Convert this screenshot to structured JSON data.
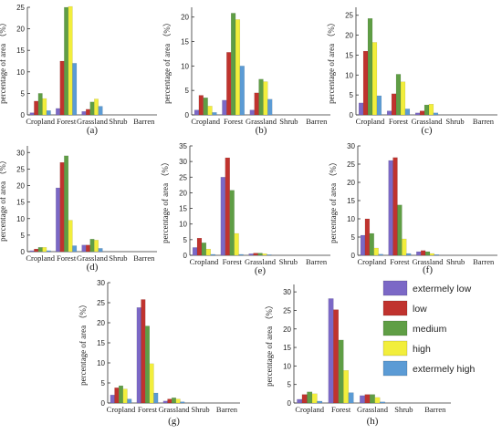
{
  "chart_data": [
    {
      "panel_label": "(a)",
      "type": "bar",
      "ylabel": "percentage of area （%）",
      "categories": [
        "Cropland",
        "Forest",
        "Grassland",
        "Shrub",
        "Barren"
      ],
      "ylim": [
        0,
        25
      ],
      "yticks": [
        0,
        5,
        10,
        15,
        20,
        25
      ],
      "series": [
        {
          "name": "extermely low",
          "values": [
            0.5,
            1.5,
            0.8,
            0,
            0
          ]
        },
        {
          "name": "low",
          "values": [
            3.2,
            12.5,
            1.3,
            0,
            0
          ]
        },
        {
          "name": "medium",
          "values": [
            5.0,
            25.0,
            3.0,
            0,
            0
          ]
        },
        {
          "name": "high",
          "values": [
            3.8,
            25.2,
            3.7,
            0,
            0
          ]
        },
        {
          "name": "extermely high",
          "values": [
            1.0,
            12.0,
            2.0,
            0,
            0
          ]
        }
      ]
    },
    {
      "panel_label": "(b)",
      "type": "bar",
      "ylabel": "percentage of area （%）",
      "categories": [
        "Cropland",
        "Forest",
        "Grassland",
        "Shrub",
        "Barren"
      ],
      "ylim": [
        0,
        22
      ],
      "yticks": [
        0,
        5,
        10,
        15,
        20
      ],
      "series": [
        {
          "name": "extermely low",
          "values": [
            1.0,
            3.0,
            1.0,
            0,
            0
          ]
        },
        {
          "name": "low",
          "values": [
            4.0,
            12.8,
            4.5,
            0,
            0
          ]
        },
        {
          "name": "medium",
          "values": [
            3.5,
            20.8,
            7.3,
            0,
            0
          ]
        },
        {
          "name": "high",
          "values": [
            1.8,
            19.5,
            6.8,
            0,
            0
          ]
        },
        {
          "name": "extermely high",
          "values": [
            0.5,
            10.0,
            3.2,
            0,
            0
          ]
        }
      ]
    },
    {
      "panel_label": "(c)",
      "type": "bar",
      "ylabel": "percentage of area （%）",
      "categories": [
        "Cropland",
        "Forest",
        "Grassland",
        "Shrub",
        "Barren"
      ],
      "ylim": [
        0,
        27
      ],
      "yticks": [
        0,
        5,
        10,
        15,
        20,
        25
      ],
      "series": [
        {
          "name": "extermely low",
          "values": [
            3.0,
            1.0,
            0.5,
            0,
            0
          ]
        },
        {
          "name": "low",
          "values": [
            16.0,
            5.3,
            1.0,
            0,
            0
          ]
        },
        {
          "name": "medium",
          "values": [
            24.2,
            10.2,
            2.5,
            0,
            0
          ]
        },
        {
          "name": "high",
          "values": [
            18.2,
            8.3,
            2.7,
            0,
            0
          ]
        },
        {
          "name": "extermely high",
          "values": [
            4.8,
            1.5,
            0.5,
            0,
            0
          ]
        }
      ]
    },
    {
      "panel_label": "(d)",
      "type": "bar",
      "ylabel": "percentage of area （%）",
      "categories": [
        "Cropland",
        "Forest",
        "Grassland",
        "Shrub",
        "Barren"
      ],
      "ylim": [
        0,
        32
      ],
      "yticks": [
        0,
        5,
        10,
        15,
        20,
        25,
        30
      ],
      "series": [
        {
          "name": "extermely low",
          "values": [
            0.3,
            19.3,
            2.0,
            0,
            0
          ]
        },
        {
          "name": "low",
          "values": [
            0.8,
            27.0,
            2.0,
            0,
            0
          ]
        },
        {
          "name": "medium",
          "values": [
            1.3,
            29.0,
            3.8,
            0,
            0
          ]
        },
        {
          "name": "high",
          "values": [
            1.3,
            9.5,
            3.5,
            0,
            0
          ]
        },
        {
          "name": "extermely high",
          "values": [
            0.3,
            1.8,
            1.0,
            0,
            0
          ]
        }
      ]
    },
    {
      "panel_label": "(e)",
      "type": "bar",
      "ylabel": "percentage of area （%）",
      "categories": [
        "Cropland",
        "Forest",
        "Grassland",
        "Shrub",
        "Barren"
      ],
      "ylim": [
        0,
        35
      ],
      "yticks": [
        0,
        5,
        10,
        15,
        20,
        25,
        30,
        35
      ],
      "series": [
        {
          "name": "extermely low",
          "values": [
            2.5,
            25.0,
            0.5,
            0,
            0
          ]
        },
        {
          "name": "low",
          "values": [
            5.5,
            31.2,
            0.7,
            0,
            0
          ]
        },
        {
          "name": "medium",
          "values": [
            4.0,
            20.8,
            0.7,
            0,
            0
          ]
        },
        {
          "name": "high",
          "values": [
            2.0,
            7.0,
            0.5,
            0,
            0
          ]
        },
        {
          "name": "extermely high",
          "values": [
            0.3,
            0.3,
            0.2,
            0,
            0
          ]
        }
      ]
    },
    {
      "panel_label": "(f)",
      "type": "bar",
      "ylabel": "percentage of area （%）",
      "categories": [
        "Cropland",
        "Forest",
        "Grassland",
        "Shrub",
        "Barren"
      ],
      "ylim": [
        0,
        30
      ],
      "yticks": [
        0,
        5,
        10,
        15,
        20,
        25,
        30
      ],
      "series": [
        {
          "name": "extermely low",
          "values": [
            5.5,
            26.0,
            1.0,
            0,
            0
          ]
        },
        {
          "name": "low",
          "values": [
            10.0,
            26.8,
            1.3,
            0,
            0
          ]
        },
        {
          "name": "medium",
          "values": [
            6.0,
            13.8,
            1.0,
            0,
            0
          ]
        },
        {
          "name": "high",
          "values": [
            2.0,
            4.5,
            0.5,
            0,
            0
          ]
        },
        {
          "name": "extermely high",
          "values": [
            0.3,
            0.5,
            0.2,
            0,
            0
          ]
        }
      ]
    },
    {
      "panel_label": "(g)",
      "type": "bar",
      "ylabel": "percentage of area （%）",
      "categories": [
        "Cropland",
        "Forest",
        "Grassland",
        "Shrub",
        "Barren"
      ],
      "ylim": [
        0,
        30
      ],
      "yticks": [
        0,
        5,
        10,
        15,
        20,
        25,
        30
      ],
      "series": [
        {
          "name": "extermely low",
          "values": [
            2.0,
            23.8,
            0.5,
            0,
            0
          ]
        },
        {
          "name": "low",
          "values": [
            3.8,
            25.8,
            1.0,
            0,
            0
          ]
        },
        {
          "name": "medium",
          "values": [
            4.3,
            19.2,
            1.3,
            0,
            0
          ]
        },
        {
          "name": "high",
          "values": [
            3.5,
            9.8,
            1.0,
            0,
            0
          ]
        },
        {
          "name": "extermely high",
          "values": [
            1.0,
            2.5,
            0.3,
            0,
            0
          ]
        }
      ]
    },
    {
      "panel_label": "(h)",
      "type": "bar",
      "ylabel": "percentage of area （%）",
      "categories": [
        "Cropland",
        "Forest",
        "Grassland",
        "Shrub",
        "Barren"
      ],
      "ylim": [
        0,
        32
      ],
      "yticks": [
        0,
        5,
        10,
        15,
        20,
        25,
        30
      ],
      "series": [
        {
          "name": "extermely low",
          "values": [
            1.0,
            28.2,
            2.0,
            0,
            0
          ]
        },
        {
          "name": "low",
          "values": [
            2.3,
            25.2,
            2.3,
            0,
            0
          ]
        },
        {
          "name": "medium",
          "values": [
            3.0,
            17.0,
            2.3,
            0,
            0
          ]
        },
        {
          "name": "high",
          "values": [
            2.5,
            8.8,
            1.5,
            0,
            0
          ]
        },
        {
          "name": "extermely high",
          "values": [
            0.5,
            2.8,
            0.3,
            0,
            0
          ]
        }
      ]
    }
  ],
  "legend": {
    "placement": "right of panel (h)",
    "items": [
      {
        "label": "extermely low",
        "color": "#7b68c6"
      },
      {
        "label": "low",
        "color": "#c0332e"
      },
      {
        "label": "medium",
        "color": "#5f9e45"
      },
      {
        "label": "high",
        "color": "#f2ee3c"
      },
      {
        "label": "extermely high",
        "color": "#5b9bd5"
      }
    ]
  }
}
